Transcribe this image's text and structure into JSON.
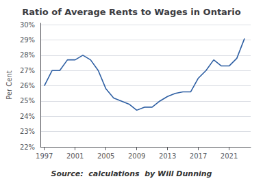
{
  "chart_data": {
    "type": "line",
    "title": "Ratio of Average Rents to Wages in Ontario",
    "ylabel": "Per Cent",
    "annotations": [
      "Source:  calculations  by Will Dunning"
    ],
    "color": "#2E5FA3",
    "grid": true,
    "x": [
      1997,
      1998,
      1999,
      2000,
      2001,
      2002,
      2003,
      2004,
      2005,
      2006,
      2007,
      2008,
      2009,
      2010,
      2011,
      2012,
      2013,
      2014,
      2015,
      2016,
      2017,
      2018,
      2019,
      2020,
      2021,
      2022,
      2023
    ],
    "values": [
      0.26,
      0.27,
      0.27,
      0.277,
      0.277,
      0.28,
      0.277,
      0.27,
      0.258,
      0.252,
      0.25,
      0.248,
      0.244,
      0.246,
      0.246,
      0.25,
      0.253,
      0.255,
      0.256,
      0.256,
      0.265,
      0.27,
      0.277,
      0.273,
      0.273,
      0.278,
      0.291
    ],
    "xlim": [
      1996.5,
      2023.8
    ],
    "xticks": [
      1997,
      2001,
      2005,
      2009,
      2013,
      2017,
      2021
    ],
    "ylim": [
      0.22,
      0.301
    ],
    "yticks": [
      {
        "value": 0.22,
        "label": "22%"
      },
      {
        "value": 0.23,
        "label": "23%"
      },
      {
        "value": 0.24,
        "label": "24%"
      },
      {
        "value": 0.25,
        "label": "25%"
      },
      {
        "value": 0.26,
        "label": "26%"
      },
      {
        "value": 0.27,
        "label": "27%"
      },
      {
        "value": 0.28,
        "label": "28%"
      },
      {
        "value": 0.29,
        "label": "29%"
      },
      {
        "value": 0.3,
        "label": "30%"
      }
    ]
  }
}
